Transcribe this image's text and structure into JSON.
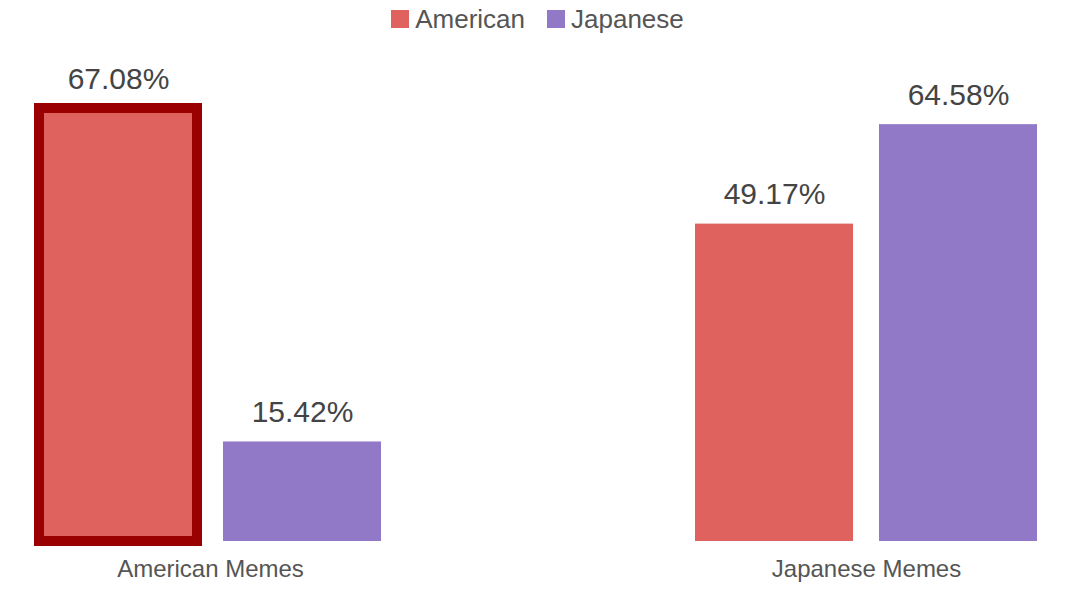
{
  "chart_data": {
    "type": "bar",
    "categories": [
      "American Memes",
      "Japanese Memes"
    ],
    "series": [
      {
        "name": "American",
        "color": "#e0625f",
        "values": [
          67.08,
          49.17
        ],
        "value_labels": [
          "67.08%",
          "49.17%"
        ]
      },
      {
        "name": "Japanese",
        "color": "#9179c7",
        "values": [
          15.42,
          64.58
        ],
        "value_labels": [
          "15.42%",
          "64.58%"
        ]
      }
    ],
    "data_labels": true,
    "legend": "top",
    "tick_labels": "x"
  }
}
